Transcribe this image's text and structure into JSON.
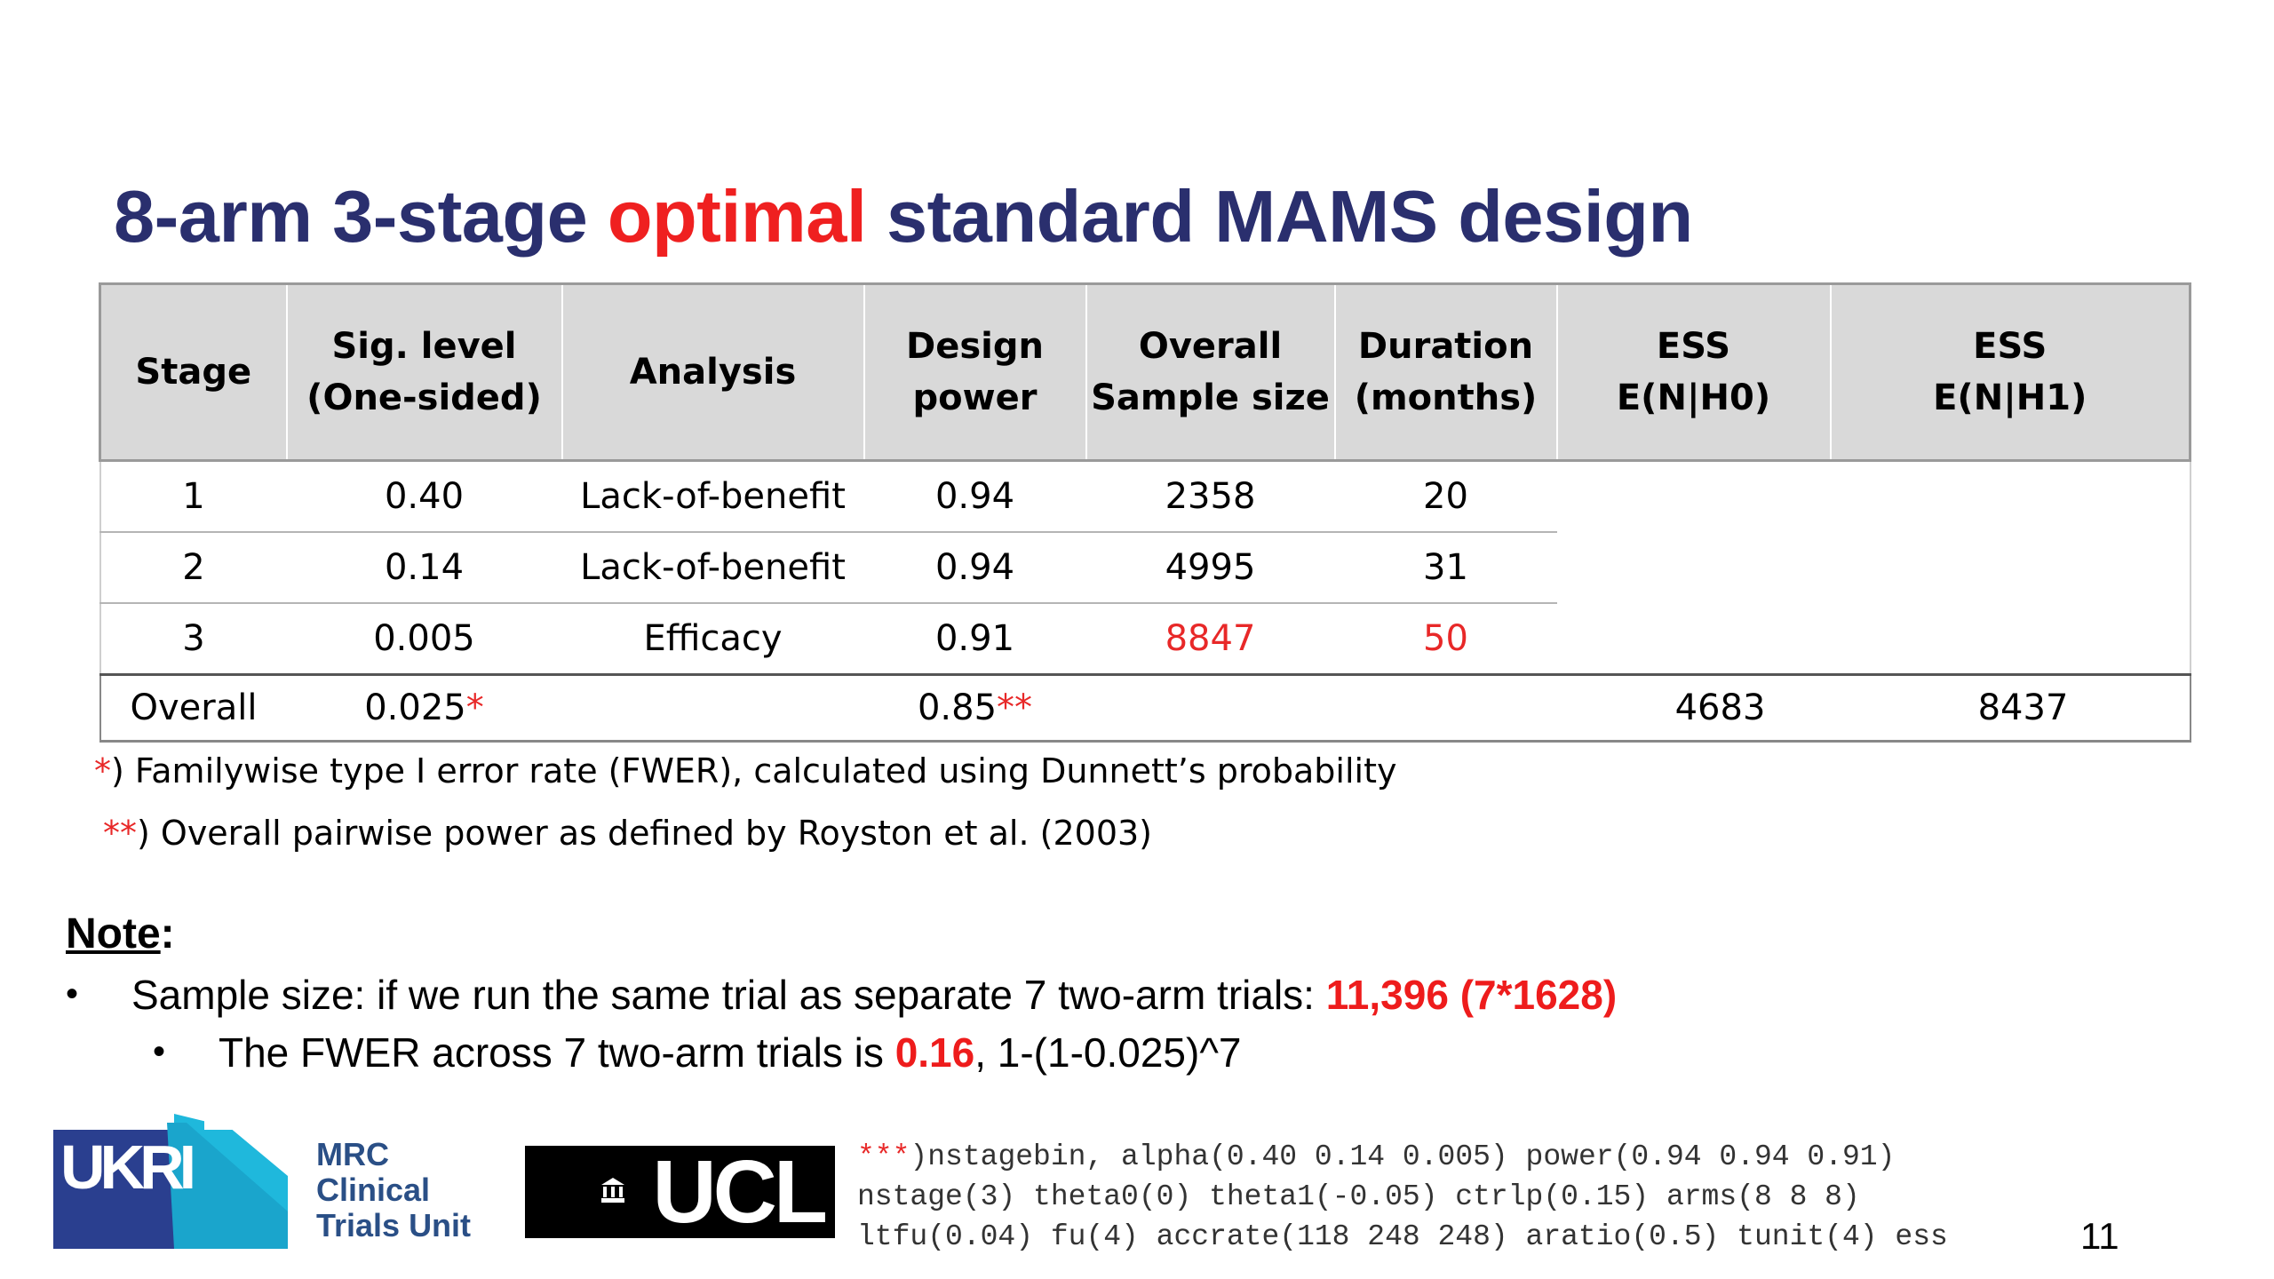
{
  "title": {
    "part1": "8-arm 3-stage ",
    "highlight": "optimal",
    "part2": " standard MAMS design"
  },
  "table": {
    "headers": [
      {
        "line1": "Stage",
        "line2": ""
      },
      {
        "line1": "Sig. level",
        "line2": "(One-sided)"
      },
      {
        "line1": "Analysis",
        "line2": ""
      },
      {
        "line1": "Design",
        "line2": "power"
      },
      {
        "line1": "Overall",
        "line2": "Sample size"
      },
      {
        "line1": "Duration",
        "line2": "(months)"
      },
      {
        "line1": "ESS",
        "line2": "E(N|H0)"
      },
      {
        "line1": "ESS",
        "line2": "E(N|H1)"
      }
    ],
    "rows": [
      {
        "stage": "1",
        "sig": "0.40",
        "analysis": "Lack-of-benefit",
        "power": "0.94",
        "sample": "2358",
        "duration": "20"
      },
      {
        "stage": "2",
        "sig": "0.14",
        "analysis": "Lack-of-benefit",
        "power": "0.94",
        "sample": "4995",
        "duration": "31"
      },
      {
        "stage": "3",
        "sig": "0.005",
        "analysis": "Efficacy",
        "power": "0.91",
        "sample": "8847",
        "duration": "50"
      }
    ],
    "overall": {
      "label": "Overall",
      "sig": "0.025",
      "sig_mark": "*",
      "power": "0.85",
      "power_mark": "**",
      "ess_h0": "4683",
      "ess_h1": "8437"
    }
  },
  "footnotes": {
    "fn1_mark": "*",
    "fn1_text": ") Familywise type I error rate (FWER), calculated using Dunnett’s probability",
    "fn2_mark": "**",
    "fn2_text": ") Overall pairwise power as defined by Royston et al. (2003)"
  },
  "note": {
    "heading": "Note",
    "colon": ":",
    "bullet1_dot": "•",
    "bullet1_text": "Sample size: if we run the same trial as separate 7 two-arm trials: ",
    "bullet1_bold": "11,396 (7*1628)",
    "bullet2_dot": "•",
    "bullet2_text": "The FWER across 7 two-arm trials is ",
    "bullet2_bold": "0.16",
    "bullet2_tail": ", 1-(1-0.025)^7"
  },
  "logos": {
    "ukri_text": "UKRI",
    "mrc_text": "MRC\nClinical\nTrials Unit",
    "ucl_text": "UCL"
  },
  "code": {
    "mark": "***",
    "line1": ")nstagebin, alpha(0.40 0.14 0.005) power(0.94 0.94 0.91)",
    "line2": "nstage(3) theta0(0) theta1(-0.05) ctrlp(0.15) arms(8 8 8)",
    "line3": "ltfu(0.04) fu(4) accrate(118 248 248) aratio(0.5) tunit(4) ess"
  },
  "page_number": "11",
  "colors": {
    "title": "#2a2f6e",
    "accent_red": "#ef2020",
    "header_bg": "#d9d9d9",
    "ukri_blue": "#2a3f8f",
    "ukri_cyan": "#1fb8dc"
  }
}
